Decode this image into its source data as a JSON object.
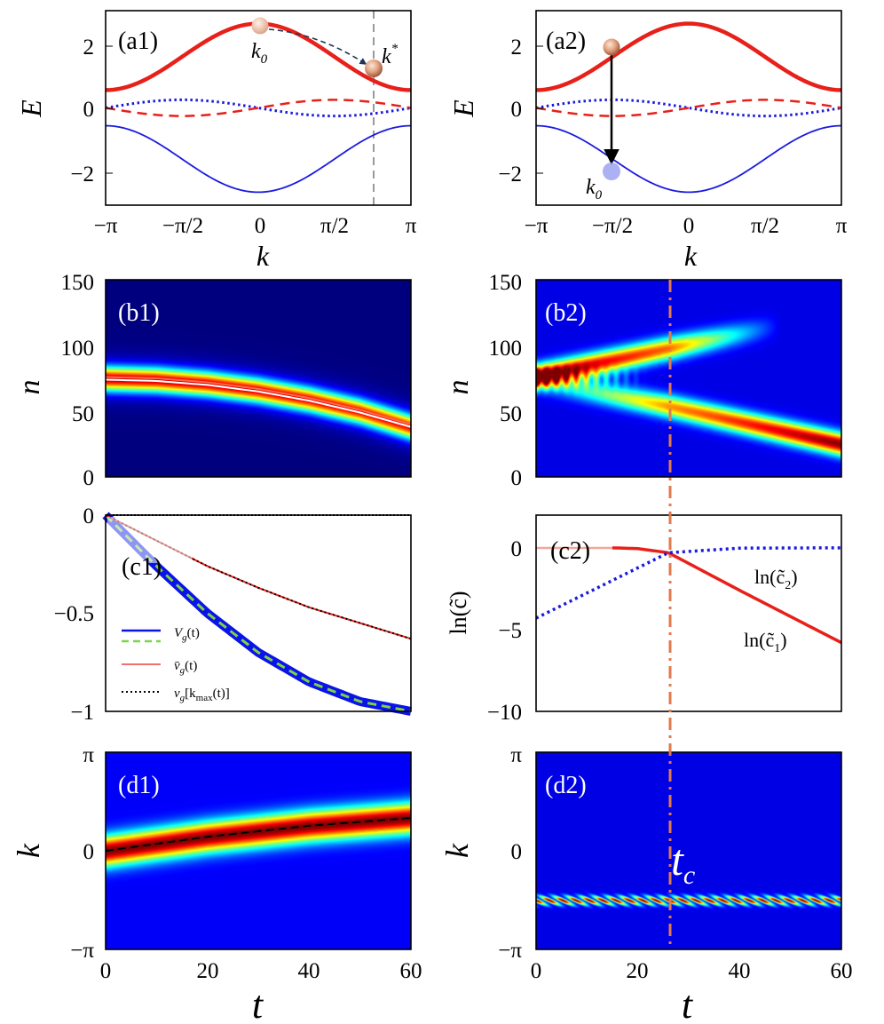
{
  "chart_data": [
    {
      "id": "a1",
      "type": "line",
      "panel_label": "(a1)",
      "xlabel": "k",
      "ylabel": "E",
      "xlim": [
        -3.1416,
        3.1416
      ],
      "ylim": [
        -3,
        3
      ],
      "xticks": [
        "−π",
        "−π/2",
        "0",
        "π/2",
        "π"
      ],
      "yticks": [
        "−2",
        "0",
        "2"
      ],
      "series": [
        {
          "style": "solid-thick-red",
          "formula": "0.5+2.1*cos(k)/2+... (upper band)",
          "points_k": [
            -3.1416,
            -1.5708,
            0,
            1.5708,
            3.1416
          ],
          "points_E": [
            0.55,
            1.6,
            2.6,
            1.6,
            0.55
          ]
        },
        {
          "style": "dotted-blue",
          "points_k": [
            -3.1416,
            -1.5708,
            0,
            1.5708,
            3.1416
          ],
          "points_E": [
            0.05,
            0.25,
            0.0,
            -0.25,
            -0.05
          ]
        },
        {
          "style": "dashed-red",
          "points_k": [
            -3.1416,
            -1.5708,
            0,
            1.5708,
            3.1416
          ],
          "points_E": [
            -0.05,
            -0.25,
            0.0,
            0.25,
            0.05
          ]
        },
        {
          "style": "solid-thin-blue",
          "points_k": [
            -3.1416,
            -1.5708,
            0,
            1.5708,
            3.1416
          ],
          "points_E": [
            -0.55,
            -1.6,
            -2.6,
            -1.6,
            -0.55
          ]
        }
      ],
      "annotations": {
        "k0_label": "k",
        "k0_sub": "0",
        "kstar_label": "k",
        "kstar_sup": "*",
        "k0_pos": [
          0,
          2.6
        ],
        "kstar_pos": [
          2.2,
          1.25
        ],
        "vline_k": 2.2
      }
    },
    {
      "id": "a2",
      "type": "line",
      "panel_label": "(a2)",
      "xlabel": "k",
      "ylabel": "E",
      "xlim": [
        -3.1416,
        3.1416
      ],
      "ylim": [
        -3,
        3
      ],
      "xticks": [
        "−π",
        "−π/2",
        "0",
        "π/2",
        "π"
      ],
      "yticks": [
        "−2",
        "0",
        "2"
      ],
      "annotations": {
        "k0_label": "k",
        "k0_sub": "0",
        "upper_pos": [
          -1.5708,
          1.85
        ],
        "lower_pos": [
          -1.5708,
          -1.95
        ]
      }
    },
    {
      "id": "b1",
      "type": "heatmap",
      "panel_label": "(b1)",
      "ylabel": "n",
      "ylim": [
        0,
        150
      ],
      "yticks": [
        "0",
        "50",
        "100",
        "150"
      ],
      "xlim": [
        0,
        60
      ],
      "ridge_t": [
        0,
        10,
        20,
        30,
        40,
        50,
        60
      ],
      "ridge_n": [
        75,
        74,
        71,
        66,
        59,
        50,
        38
      ],
      "white_line_n": [
        74,
        73,
        70,
        65,
        58,
        49,
        38
      ],
      "red_line_n": [
        76,
        75,
        72,
        67,
        60,
        51,
        40
      ]
    },
    {
      "id": "b2",
      "type": "heatmap",
      "panel_label": "(b2)",
      "ylabel": "n",
      "ylim": [
        0,
        150
      ],
      "yticks": [
        "0",
        "50",
        "100",
        "150"
      ],
      "xlim": [
        0,
        60
      ],
      "upper_branch_t": [
        0,
        26,
        60
      ],
      "upper_branch_n": [
        77,
        98,
        125
      ],
      "lower_branch_t": [
        0,
        26,
        60
      ],
      "lower_branch_n": [
        73,
        54,
        25
      ]
    },
    {
      "id": "c1",
      "type": "line",
      "panel_label": "(c1)",
      "xlim": [
        0,
        60
      ],
      "ylim": [
        -1,
        0
      ],
      "yticks": [
        "−1",
        "−0.5",
        "0"
      ],
      "legend": [
        "V_g(t)",
        "v̄_g(t)",
        "v_g[k_max(t)]"
      ],
      "legend_text": {
        "Vg": "V",
        "vbar": "v̄",
        "vk": "v",
        "sub_g": "g",
        "paren_t": "(t)",
        "bracket": "[k",
        "sub_max": "max",
        "bracket_end": "(t)]"
      },
      "series": [
        {
          "name": "V_g(t)",
          "t": [
            0,
            10,
            20,
            30,
            40,
            50,
            60
          ],
          "v": [
            0,
            -0.26,
            -0.5,
            -0.7,
            -0.85,
            -0.95,
            -1.0
          ]
        },
        {
          "name": "v̄_g(t)",
          "t": [
            0,
            10,
            20,
            30,
            40,
            50,
            60
          ],
          "v": [
            0,
            -0.13,
            -0.26,
            -0.37,
            -0.47,
            -0.55,
            -0.63
          ]
        },
        {
          "name": "v_g[k_max(t)]",
          "t": [
            0,
            10,
            20,
            30,
            40,
            50,
            60
          ],
          "v": [
            0,
            -0.13,
            -0.26,
            -0.37,
            -0.47,
            -0.55,
            -0.63
          ]
        }
      ]
    },
    {
      "id": "c2",
      "type": "line",
      "panel_label": "(c2)",
      "ylabel": "ln(c̃)",
      "ylim": [
        -10,
        2
      ],
      "xlim": [
        0,
        60
      ],
      "yticks": [
        "−10",
        "−5",
        "0"
      ],
      "labels": {
        "ln_open": "ln(c̃",
        "close": ")",
        "sub1": "1",
        "sub2": "2"
      },
      "series": [
        {
          "name": "ln(c̃₁)",
          "t": [
            15,
            20,
            26,
            40,
            60
          ],
          "v": [
            0,
            -0.05,
            -0.3,
            -2.6,
            -5.8
          ]
        },
        {
          "name": "ln(c̃₂)",
          "t": [
            0,
            13,
            26,
            40,
            60
          ],
          "v": [
            -4.3,
            -2.3,
            -0.3,
            -0.02,
            0
          ]
        }
      ]
    },
    {
      "id": "d1",
      "type": "heatmap",
      "panel_label": "(d1)",
      "xlabel": "t",
      "ylabel": "k",
      "xlim": [
        0,
        60
      ],
      "ylim": [
        -3.1416,
        3.1416
      ],
      "xticks": [
        "0",
        "20",
        "40",
        "60"
      ],
      "yticks": [
        "−π",
        "0",
        "π"
      ],
      "ridge_t": [
        0,
        20,
        40,
        60
      ],
      "ridge_k": [
        0.0,
        0.45,
        0.8,
        1.05
      ]
    },
    {
      "id": "d2",
      "type": "heatmap",
      "panel_label": "(d2)",
      "xlabel": "t",
      "ylabel": "k",
      "xlim": [
        0,
        60
      ],
      "ylim": [
        -3.1416,
        3.1416
      ],
      "xticks": [
        "0",
        "20",
        "40",
        "60"
      ],
      "yticks": [
        "−π",
        "0",
        "π"
      ],
      "stripe_k": -1.5708,
      "tc_value": 26,
      "tc_label": "t",
      "tc_sub": "c"
    }
  ]
}
